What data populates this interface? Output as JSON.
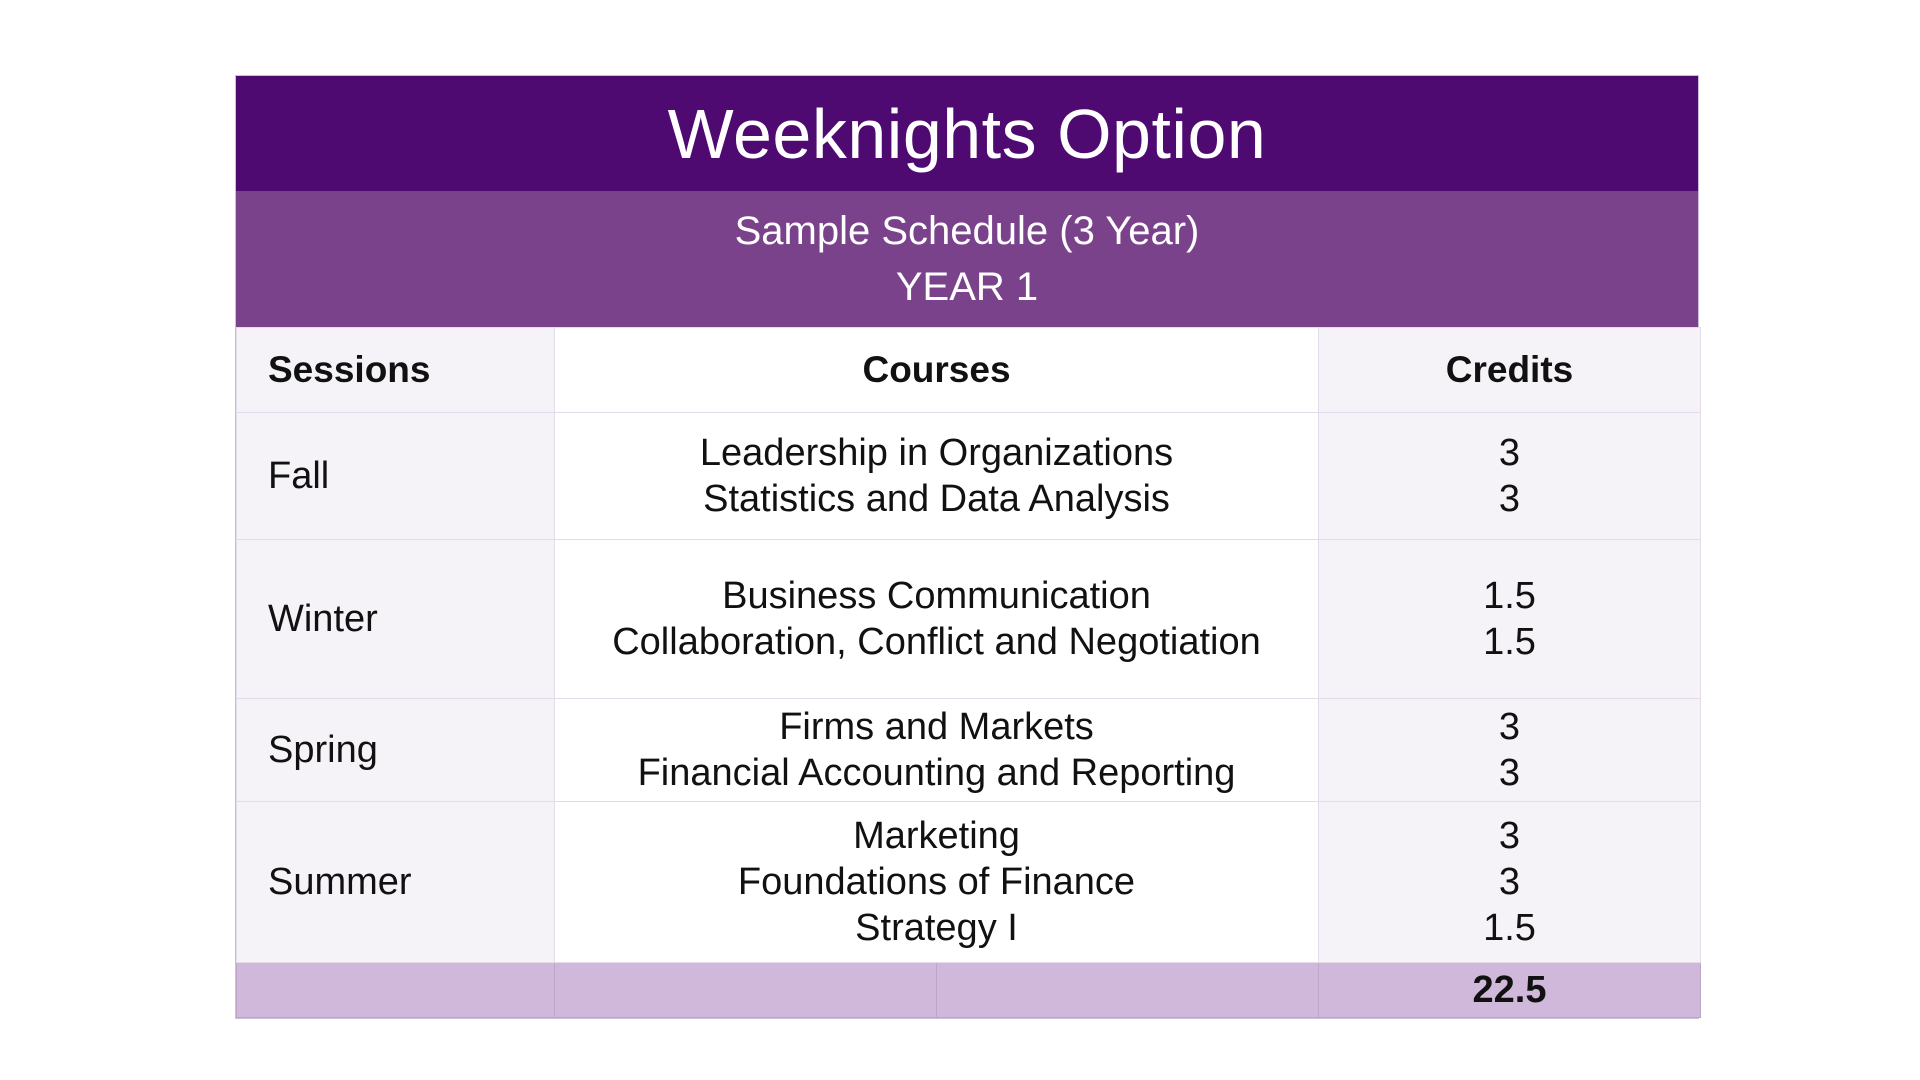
{
  "title": "Weeknights Option",
  "subtitle": "Sample Schedule (3 Year)",
  "year_label": "YEAR 1",
  "columns": {
    "sessions": "Sessions",
    "courses": "Courses",
    "credits": "Credits"
  },
  "rows": [
    {
      "session": "Fall",
      "courses": [
        "Leadership in Organizations",
        "Statistics and Data Analysis"
      ],
      "credits": [
        "3",
        "3"
      ]
    },
    {
      "session": "Winter",
      "courses": [
        "Business Communication",
        "Collaboration, Conflict and Negotiation"
      ],
      "credits": [
        "1.5",
        "1.5"
      ]
    },
    {
      "session": "Spring",
      "courses": [
        "Firms and Markets",
        "Financial Accounting and Reporting"
      ],
      "credits": [
        "3",
        "3"
      ]
    },
    {
      "session": "Summer",
      "courses": [
        "Marketing",
        "Foundations of Finance",
        "Strategy I"
      ],
      "credits": [
        "3",
        "3",
        "1.5"
      ]
    }
  ],
  "total_credits": "22.5",
  "colors": {
    "title_bg": "#4f0a72",
    "subtitle_bg": "#7b428c",
    "total_bg": "#cfb8d9"
  }
}
